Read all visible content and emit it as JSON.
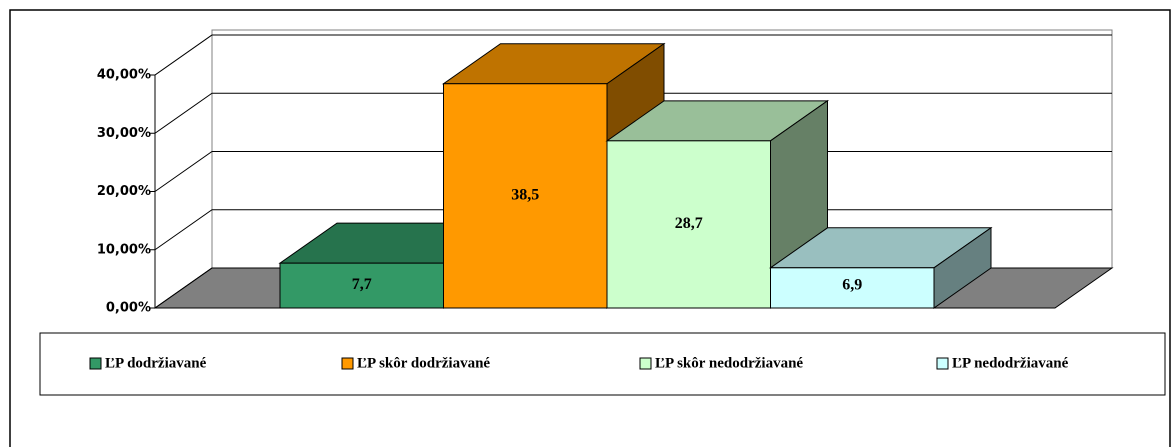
{
  "chart_data": {
    "type": "bar3d",
    "categories": [
      "ĽP dodržiavané",
      "ĽP skôr dodržiavané",
      "ĽP skôr nedodržiavané",
      "ĽP nedodržiavané"
    ],
    "values": [
      7.7,
      38.5,
      28.7,
      6.9
    ],
    "value_labels": [
      "7,7",
      "38,5",
      "28,7",
      "6,9"
    ],
    "colors": [
      "#339966",
      "#ff9900",
      "#ccffcc",
      "#ccffff"
    ],
    "ylim": [
      0,
      40
    ],
    "yticks": [
      {
        "value": 0,
        "label": "0,00%"
      },
      {
        "value": 10,
        "label": "10,00%"
      },
      {
        "value": 20,
        "label": "20,00%"
      },
      {
        "value": 30,
        "label": "30,00%"
      },
      {
        "value": 40,
        "label": "40,00%"
      }
    ],
    "grid": true,
    "legend": "bottom"
  }
}
